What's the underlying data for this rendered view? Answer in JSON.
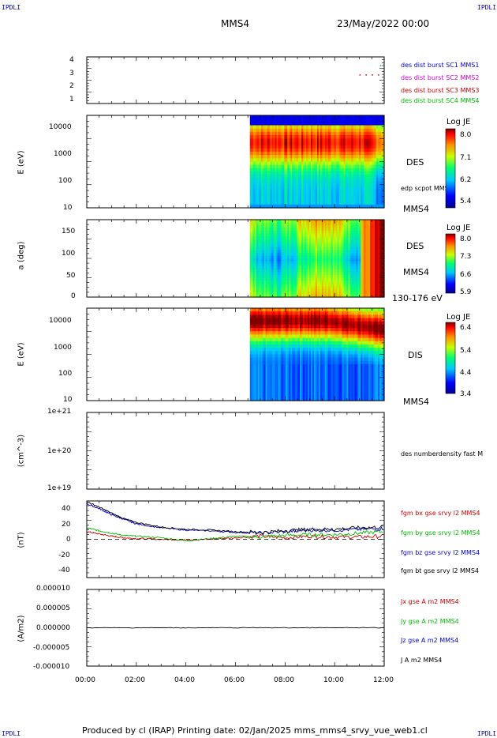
{
  "corners": {
    "tl": "IPDLI",
    "tr": "IPDLI",
    "bl": "IPDLI",
    "br": "IPDLI"
  },
  "header": {
    "spacecraft": "MMS4",
    "datetime": "23/May/2022 00:00"
  },
  "footer": "Produced by cl (IRAP)   Printing date: 02/Jan/2025   mms_mms4_srvy_vue_web1.cl",
  "x_ticks": [
    "00:00",
    "02:00",
    "04:00",
    "06:00",
    "08:00",
    "10:00",
    "12:00"
  ],
  "panels": {
    "burst": {
      "yticks": [
        "4",
        "3",
        "2",
        "1"
      ],
      "legend": [
        {
          "label": "des dist burst SC1 MMS1",
          "color": "#0000cc"
        },
        {
          "label": "des dist burst SC2 MMS2",
          "color": "#cc00cc"
        },
        {
          "label": "des dist burst SC3 MMS3",
          "color": "#cc0000"
        },
        {
          "label": "des dist burst SC4 MMS4",
          "color": "#00bb00"
        }
      ]
    },
    "des_energy": {
      "ylabel": "E (eV)",
      "yticks": [
        "10000",
        "1000",
        "100",
        "10"
      ],
      "right1": "DES",
      "right2": "edp scpot MMS4",
      "right3": "MMS4",
      "cbar_title": "Log JE",
      "cbar_ticks": [
        "8.0",
        "7.1",
        "6.2",
        "5.4"
      ]
    },
    "des_pitch": {
      "ylabel": "a (deg)",
      "yticks": [
        "150",
        "100",
        "50",
        "0"
      ],
      "right1": "DES",
      "right2": "MMS4",
      "right3": "130-176 eV",
      "cbar_title": "Log JE",
      "cbar_ticks": [
        "8.0",
        "7.3",
        "6.6",
        "5.9"
      ]
    },
    "dis_energy": {
      "ylabel": "E (eV)",
      "yticks": [
        "10000",
        "1000",
        "100",
        "10"
      ],
      "right1": "DIS",
      "right3": "MMS4",
      "cbar_title": "Log JE",
      "cbar_ticks": [
        "6.4",
        "5.4",
        "4.4",
        "3.4"
      ]
    },
    "density": {
      "ylabel": "(cm^-3)",
      "yticks": [
        "1e+21",
        "1e+20",
        "1e+19"
      ],
      "legend": "des numberdensity fast M"
    },
    "bfield": {
      "ylabel": "(nT)",
      "yticks": [
        "40",
        "20",
        "0",
        "-20",
        "-40"
      ],
      "legend": [
        {
          "label": "fgm bx gse srvy l2 MMS4",
          "color": "#cc0000"
        },
        {
          "label": "fgm by gse srvy l2 MMS4",
          "color": "#00bb00"
        },
        {
          "label": "fgm bz gse srvy l2 MMS4",
          "color": "#0000cc"
        },
        {
          "label": "fgm bt gse srvy l2 MMS4",
          "color": "#000000"
        }
      ]
    },
    "current": {
      "ylabel": "(A/m2)",
      "yticks": [
        "0.000010",
        "0.000005",
        "0.000000",
        "-0.000005",
        "-0.000010"
      ],
      "legend": [
        {
          "label": "Jx gse A m2 MMS4",
          "color": "#cc0000"
        },
        {
          "label": "Jy gse A m2 MMS4",
          "color": "#00bb00"
        },
        {
          "label": "Jz gse A m2 MMS4",
          "color": "#0000cc"
        },
        {
          "label": "J A m2 MMS4",
          "color": "#000000"
        }
      ]
    }
  },
  "chart_data": [
    {
      "type": "scatter",
      "title": "",
      "xlabel": "",
      "ylabel": "",
      "xlim": [
        "00:00",
        "12:00"
      ],
      "ylim": [
        0.5,
        4.5
      ],
      "series": [
        {
          "name": "des dist burst SC3 MMS3",
          "x": [
            "11:00",
            "11:15",
            "11:30",
            "11:45"
          ],
          "values": [
            3,
            3,
            3,
            3
          ]
        },
        {
          "name": "des dist burst SC4 MMS4",
          "x": [
            "11:50"
          ],
          "values": [
            3.8
          ]
        }
      ]
    },
    {
      "type": "heatmap",
      "title": "",
      "ylabel": "E (eV)",
      "scale": "log",
      "ylim": [
        10,
        30000
      ],
      "data_start": "06:35",
      "colorbar": {
        "label": "Log JE",
        "range": [
          5.4,
          8.0
        ]
      }
    },
    {
      "type": "heatmap",
      "title": "",
      "ylabel": "a (deg)",
      "ylim": [
        0,
        180
      ],
      "data_start": "06:35",
      "colorbar": {
        "label": "Log JE",
        "range": [
          5.9,
          8.0
        ]
      }
    },
    {
      "type": "heatmap",
      "title": "",
      "ylabel": "E (eV)",
      "scale": "log",
      "ylim": [
        10,
        30000
      ],
      "data_start": "06:35",
      "colorbar": {
        "label": "Log JE",
        "range": [
          3.4,
          6.4
        ]
      }
    },
    {
      "type": "line",
      "title": "",
      "ylabel": "(nT)",
      "ylim": [
        -50,
        50
      ],
      "x": [
        "00:00",
        "00:30",
        "01:00",
        "01:30",
        "02:00",
        "03:00",
        "04:00",
        "05:00",
        "06:00",
        "07:00",
        "08:00",
        "09:00",
        "10:00",
        "11:00",
        "12:00"
      ],
      "series": [
        {
          "name": "fgm bx gse srvy l2 MMS4",
          "values": [
            10,
            7,
            4,
            2,
            1,
            0,
            -1,
            0,
            2,
            4,
            2,
            4,
            3,
            3,
            4
          ]
        },
        {
          "name": "fgm by gse srvy l2 MMS4",
          "values": [
            15,
            11,
            8,
            5,
            4,
            2,
            -2,
            1,
            4,
            3,
            5,
            6,
            6,
            8,
            10
          ]
        },
        {
          "name": "fgm bz gse srvy l2 MMS4",
          "values": [
            46,
            40,
            32,
            26,
            20,
            15,
            12,
            11,
            9,
            8,
            10,
            12,
            12,
            13,
            14
          ]
        },
        {
          "name": "fgm bt gse srvy l2 MMS4",
          "values": [
            49,
            42,
            34,
            27,
            22,
            16,
            13,
            12,
            10,
            9,
            11,
            13,
            13,
            15,
            16
          ]
        }
      ]
    },
    {
      "type": "line",
      "title": "",
      "ylabel": "(A/m2)",
      "ylim": [
        -1e-05,
        1e-05
      ],
      "x": [
        "00:00",
        "12:00"
      ],
      "series": [
        {
          "name": "J A m2 MMS4",
          "values": [
            0,
            0
          ]
        }
      ]
    }
  ]
}
